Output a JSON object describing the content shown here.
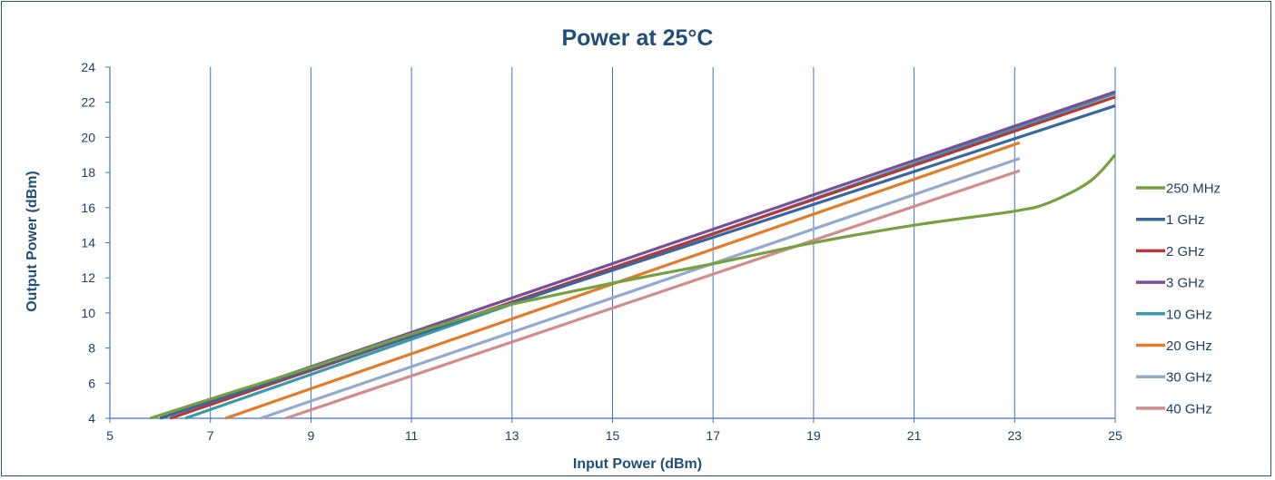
{
  "chart_data": {
    "type": "line",
    "title": "Power at 25°C",
    "xlabel": "Input Power (dBm)",
    "ylabel": "Output Power (dBm)",
    "xlim": [
      5,
      25
    ],
    "ylim": [
      4,
      24
    ],
    "xticks": [
      5,
      7,
      9,
      11,
      13,
      15,
      17,
      19,
      21,
      23,
      25
    ],
    "yticks": [
      4,
      6,
      8,
      10,
      12,
      14,
      16,
      18,
      20,
      22,
      24
    ],
    "grid": "vertical",
    "legend_position": "right",
    "series": [
      {
        "name": "250 MHz",
        "color": "#77a03f",
        "x": [
          5.8,
          7,
          9,
          11,
          12.5,
          13,
          15,
          17,
          19,
          21,
          23,
          23.7,
          24.5,
          25
        ],
        "y": [
          4.0,
          5.1,
          6.9,
          8.8,
          10.1,
          10.5,
          11.7,
          12.8,
          14.0,
          15.0,
          15.8,
          16.3,
          17.5,
          19.0
        ]
      },
      {
        "name": "1 GHz",
        "color": "#3a66a0",
        "x": [
          6.0,
          25
        ],
        "y": [
          4.0,
          21.8
        ]
      },
      {
        "name": "2 GHz",
        "color": "#b23a3a",
        "x": [
          6.2,
          25
        ],
        "y": [
          4.0,
          22.3
        ]
      },
      {
        "name": "3 GHz",
        "color": "#7a4f9a",
        "x": [
          6.0,
          25
        ],
        "y": [
          4.0,
          22.6
        ]
      },
      {
        "name": "10 GHz",
        "color": "#3a9aaa",
        "x": [
          6.5,
          25
        ],
        "y": [
          4.0,
          22.5
        ]
      },
      {
        "name": "20 GHz",
        "color": "#e07c2a",
        "x": [
          7.3,
          23.1
        ],
        "y": [
          4.0,
          19.7
        ]
      },
      {
        "name": "30 GHz",
        "color": "#93a9d0",
        "x": [
          8.0,
          23.1
        ],
        "y": [
          4.0,
          18.8
        ]
      },
      {
        "name": "40 GHz",
        "color": "#d48b8b",
        "x": [
          8.5,
          23.1
        ],
        "y": [
          4.0,
          18.1
        ]
      }
    ]
  }
}
